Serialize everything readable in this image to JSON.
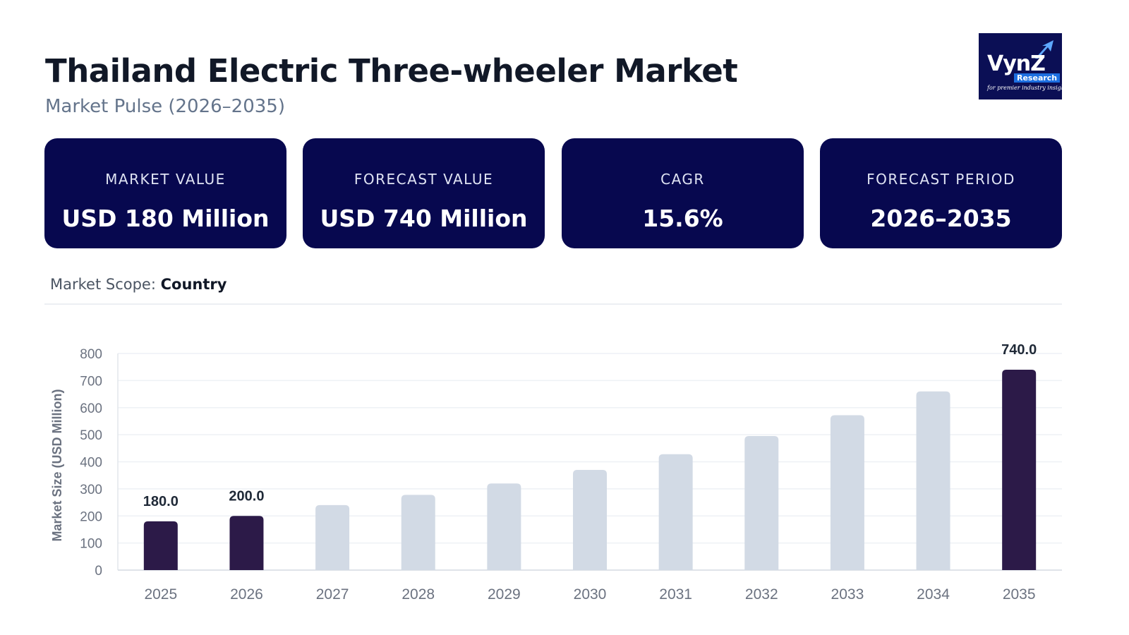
{
  "header": {
    "title": "Thailand Electric Three-wheeler Market",
    "subtitle": "Market Pulse (2026–2035)"
  },
  "logo": {
    "word": "VynZ",
    "sub": "Research",
    "tagline": "for premier industry insights",
    "background": "#0b0f55"
  },
  "cards": [
    {
      "label": "MARKET VALUE",
      "value": "USD 180 Million"
    },
    {
      "label": "FORECAST VALUE",
      "value": "USD 740 Million"
    },
    {
      "label": "CAGR",
      "value": "15.6%"
    },
    {
      "label": "FORECAST PERIOD",
      "value": "2026–2035"
    }
  ],
  "scope": {
    "label": "Market Scope:",
    "value": "Country"
  },
  "colors": {
    "card_bg": "#07084f",
    "highlight_bar": "#2c1a48",
    "muted_bar": "#d2dae5",
    "grid": "#eef1f5"
  },
  "chart_data": {
    "type": "bar",
    "categories": [
      "2025",
      "2026",
      "2027",
      "2028",
      "2029",
      "2030",
      "2031",
      "2032",
      "2033",
      "2034",
      "2035"
    ],
    "values": [
      180,
      200,
      240,
      278,
      320,
      370,
      428,
      495,
      572,
      660,
      740
    ],
    "highlighted": [
      true,
      true,
      false,
      false,
      false,
      false,
      false,
      false,
      false,
      false,
      true
    ],
    "data_labels": [
      "180.0",
      "200.0",
      "",
      "",
      "",
      "",
      "",
      "",
      "",
      "",
      "740.0"
    ],
    "ylabel": "Market Size (USD Million)",
    "xlabel": "",
    "ylim": [
      0,
      800
    ],
    "yticks": [
      0,
      100,
      200,
      300,
      400,
      500,
      600,
      700,
      800
    ],
    "grid": true
  }
}
